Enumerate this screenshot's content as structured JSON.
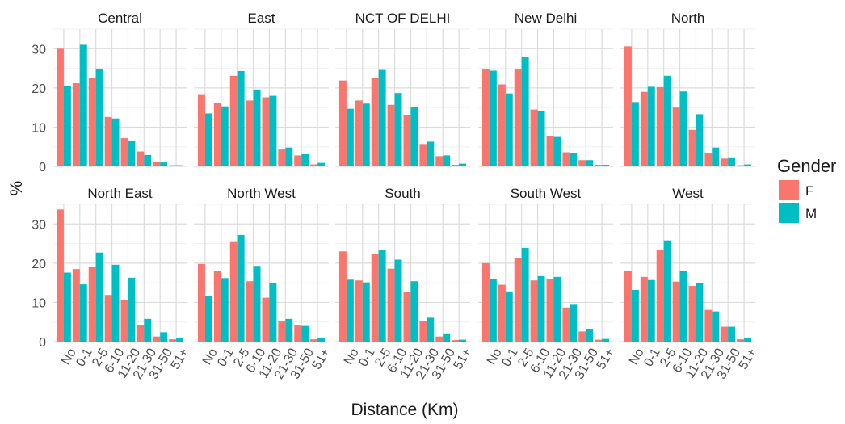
{
  "chart_data": {
    "type": "bar",
    "layout": "facet-grid-2x5",
    "xlabel": "Distance (Km)",
    "ylabel": "%",
    "ylim": [
      0,
      35
    ],
    "yticks": [
      0,
      10,
      20,
      30
    ],
    "grid": true,
    "legend_position": "right",
    "legend": {
      "title": "Gender",
      "entries": [
        {
          "label": "F",
          "color": "#F8766D"
        },
        {
          "label": "M",
          "color": "#00BFC4"
        }
      ]
    },
    "categories": [
      "No",
      "0-1",
      "2-5",
      "6-10",
      "11-20",
      "21-30",
      "31-50",
      "51+"
    ],
    "panels": [
      {
        "title": "Central",
        "series": [
          {
            "name": "F",
            "values": [
              30,
              21.2,
              22.6,
              12.6,
              7.2,
              3.8,
              1.2,
              0.3
            ]
          },
          {
            "name": "M",
            "values": [
              20.6,
              31,
              24.8,
              12.2,
              6.6,
              2.9,
              1.0,
              0.3
            ]
          }
        ]
      },
      {
        "title": "East",
        "series": [
          {
            "name": "F",
            "values": [
              18.2,
              16.1,
              23.1,
              16.8,
              17.6,
              4.3,
              2.8,
              0.5
            ]
          },
          {
            "name": "M",
            "values": [
              13.5,
              15.3,
              24.3,
              19.6,
              18,
              4.8,
              3.1,
              0.9
            ]
          }
        ]
      },
      {
        "title": "NCT OF DELHI",
        "series": [
          {
            "name": "F",
            "values": [
              21.9,
              16.8,
              22.6,
              15.7,
              13.1,
              5.7,
              2.6,
              0.4
            ]
          },
          {
            "name": "M",
            "values": [
              14.7,
              16,
              24.6,
              18.7,
              15.1,
              6.3,
              2.8,
              0.7
            ]
          }
        ]
      },
      {
        "title": "New Delhi",
        "series": [
          {
            "name": "F",
            "values": [
              24.7,
              20.9,
              24.7,
              14.5,
              7.7,
              3.6,
              1.6,
              0.4
            ]
          },
          {
            "name": "M",
            "values": [
              24.4,
              18.6,
              28,
              14.1,
              7.5,
              3.5,
              1.6,
              0.4
            ]
          }
        ]
      },
      {
        "title": "North",
        "series": [
          {
            "name": "F",
            "values": [
              30.6,
              19,
              20.2,
              15,
              9.3,
              3.4,
              2.0,
              0.3
            ]
          },
          {
            "name": "M",
            "values": [
              16.4,
              20.3,
              23.1,
              19.1,
              13.3,
              4.8,
              2.1,
              0.5
            ]
          }
        ]
      },
      {
        "title": "North East",
        "series": [
          {
            "name": "F",
            "values": [
              33.7,
              18.5,
              19,
              11.9,
              10.6,
              4.3,
              1.3,
              0.6
            ]
          },
          {
            "name": "M",
            "values": [
              17.6,
              14.6,
              22.7,
              19.6,
              16.3,
              5.8,
              2.4,
              0.9
            ]
          }
        ]
      },
      {
        "title": "North West",
        "series": [
          {
            "name": "F",
            "values": [
              19.8,
              18.1,
              25.4,
              15.4,
              11.2,
              5.2,
              4.1,
              0.6
            ]
          },
          {
            "name": "M",
            "values": [
              11.6,
              16.2,
              27.2,
              19.3,
              14.9,
              5.8,
              4.0,
              0.9
            ]
          }
        ]
      },
      {
        "title": "South",
        "series": [
          {
            "name": "F",
            "values": [
              23,
              15.6,
              22.4,
              18.6,
              12.6,
              5.2,
              1.3,
              0.4
            ]
          },
          {
            "name": "M",
            "values": [
              15.8,
              15.1,
              23.3,
              20.9,
              15.4,
              6.1,
              2.1,
              0.5
            ]
          }
        ]
      },
      {
        "title": "South West",
        "series": [
          {
            "name": "F",
            "values": [
              20,
              14.5,
              21.4,
              15.6,
              16,
              8.7,
              2.6,
              0.5
            ]
          },
          {
            "name": "M",
            "values": [
              15.9,
              12.8,
              23.9,
              16.7,
              16.5,
              9.4,
              3.3,
              0.7
            ]
          }
        ]
      },
      {
        "title": "West",
        "series": [
          {
            "name": "F",
            "values": [
              18.1,
              16.5,
              23.3,
              15.3,
              14.2,
              8.1,
              3.8,
              0.6
            ]
          },
          {
            "name": "M",
            "values": [
              13.2,
              15.7,
              25.8,
              18,
              14.9,
              7.7,
              3.8,
              0.9
            ]
          }
        ]
      }
    ]
  }
}
